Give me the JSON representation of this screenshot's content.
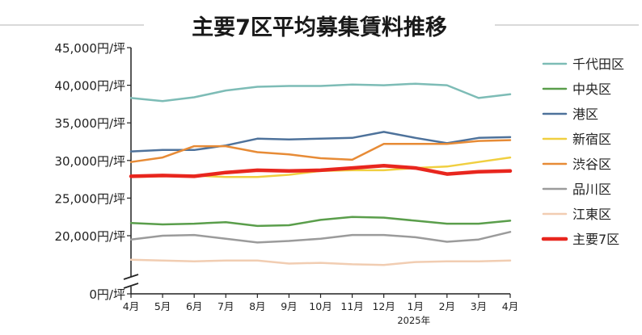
{
  "chart_data": {
    "type": "line",
    "title": "主要7区平均募集賃料推移",
    "xlabel": "",
    "ylabel": "",
    "categories": [
      "4月",
      "5月",
      "6月",
      "7月",
      "8月",
      "9月",
      "10月",
      "11月",
      "12月",
      "1月",
      "2月",
      "3月",
      "4月"
    ],
    "year_label": "2025年",
    "y_ticks": [
      "45,000円/坪",
      "40,000円/坪",
      "35,000円/坪",
      "30,000円/坪",
      "25,000円/坪",
      "20,000円/坪",
      "0円/坪"
    ],
    "y_tick_values": [
      45000,
      40000,
      35000,
      30000,
      25000,
      20000,
      0
    ],
    "ylim": [
      15000,
      45000
    ],
    "axis_break": true,
    "grid": false,
    "legend_position": "right",
    "series": [
      {
        "name": "千代田区",
        "color": "#7dbcb6",
        "width": 2.5,
        "values": [
          38300,
          37900,
          38400,
          39300,
          39800,
          39900,
          39900,
          40100,
          40000,
          40200,
          40000,
          38300,
          38800
        ]
      },
      {
        "name": "中央区",
        "color": "#5a9e4b",
        "width": 2.5,
        "values": [
          21700,
          21500,
          21600,
          21800,
          21300,
          21400,
          22100,
          22500,
          22400,
          22000,
          21600,
          21600,
          22000
        ]
      },
      {
        "name": "港区",
        "color": "#4e729b",
        "width": 2.5,
        "values": [
          31200,
          31400,
          31400,
          32000,
          32900,
          32800,
          32900,
          33000,
          33800,
          33000,
          32300,
          33000,
          33100
        ]
      },
      {
        "name": "新宿区",
        "color": "#f0cf40",
        "width": 2.5,
        "values": [
          27800,
          27900,
          28000,
          27800,
          27800,
          28100,
          28600,
          28700,
          28700,
          29000,
          29200,
          29800,
          30400
        ]
      },
      {
        "name": "渋谷区",
        "color": "#e78b36",
        "width": 2.5,
        "values": [
          29800,
          30400,
          31900,
          31900,
          31100,
          30800,
          30300,
          30100,
          32200,
          32200,
          32200,
          32600,
          32700
        ]
      },
      {
        "name": "品川区",
        "color": "#9b9b9b",
        "width": 2.5,
        "values": [
          19500,
          20000,
          20100,
          19600,
          19100,
          19300,
          19600,
          20100,
          20100,
          19800,
          19200,
          19500,
          20500
        ]
      },
      {
        "name": "江東区",
        "color": "#f1cdb2",
        "width": 2.5,
        "values": [
          16800,
          16700,
          16600,
          16700,
          16700,
          16300,
          16400,
          16200,
          16100,
          16500,
          16600,
          16600,
          16700
        ]
      },
      {
        "name": "主要7区",
        "color": "#e8261e",
        "width": 4.5,
        "values": [
          27900,
          28000,
          27900,
          28400,
          28700,
          28600,
          28700,
          29000,
          29300,
          29000,
          28200,
          28500,
          28600
        ]
      }
    ]
  }
}
